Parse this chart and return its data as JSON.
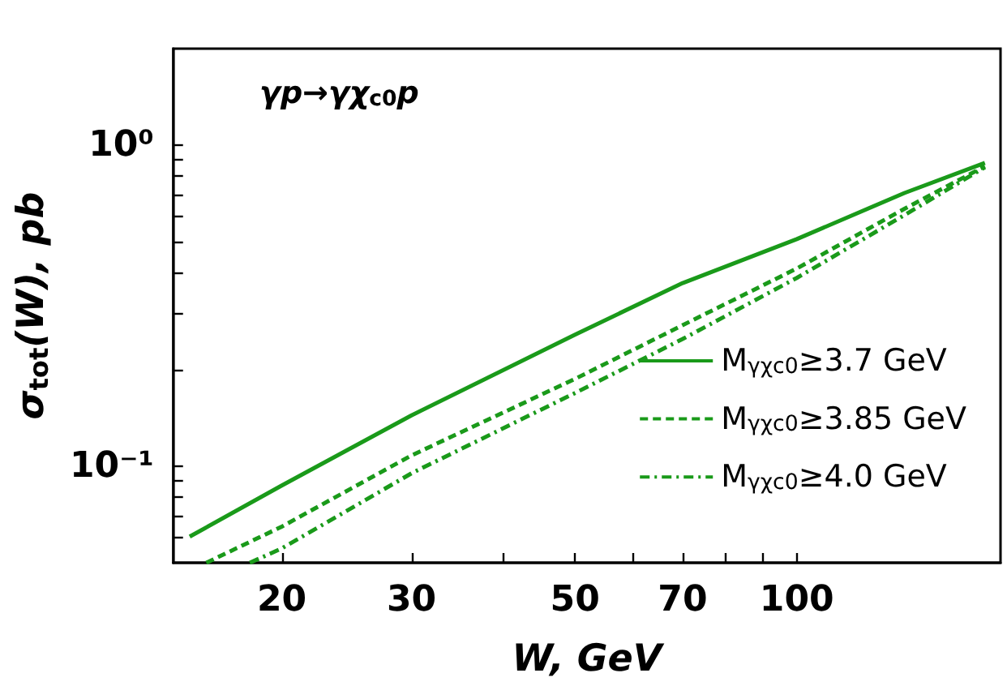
{
  "chart_data": {
    "type": "line",
    "xlabel": "W, GeV",
    "ylabel": "σ$_{tot}$(W), pb",
    "annotations": [
      "γp→γχ$_{c0}$p"
    ],
    "log": "xy",
    "xlim": [
      14.25,
      189
    ],
    "ylim": [
      0.05,
      2
    ],
    "xticks": [
      20,
      30,
      {
        "value": 40,
        "label": null
      },
      50,
      {
        "value": 60,
        "label": null
      },
      70,
      {
        "value": 80,
        "label": null
      },
      {
        "value": 90,
        "label": null
      },
      100
    ],
    "yticks": [
      {
        "value": 0.06,
        "label": null
      },
      {
        "value": 0.07,
        "label": null
      },
      {
        "value": 0.08,
        "label": null
      },
      {
        "value": 0.09,
        "label": null
      },
      {
        "value": 0.1,
        "label": "10⁻¹"
      },
      {
        "value": 0.2,
        "label": null
      },
      {
        "value": 0.3,
        "label": null
      },
      {
        "value": 0.4,
        "label": null
      },
      {
        "value": 0.5,
        "label": null
      },
      {
        "value": 0.6,
        "label": null
      },
      {
        "value": 0.7,
        "label": null
      },
      {
        "value": 0.8,
        "label": null
      },
      {
        "value": 0.9,
        "label": null
      },
      {
        "value": 1,
        "label": "10⁰"
      }
    ],
    "grid": false,
    "legend": "bottom right",
    "marker": "none",
    "series": [
      {
        "name": "M$_{γχc0}$≥3.7 GeV",
        "color": "#1a9a1a",
        "line_style": "solid",
        "x": [
          15,
          20,
          30,
          50,
          70,
          100,
          140,
          180
        ],
        "values": [
          0.0603,
          0.087,
          0.144,
          0.257,
          0.372,
          0.51,
          0.71,
          0.881
        ]
      },
      {
        "name": "M$_{γχc0}$≥3.85 GeV",
        "color": "#1a9a1a",
        "line_style": "dashed",
        "x": [
          15.8,
          20,
          30,
          50,
          70,
          100,
          140,
          180
        ],
        "values": [
          0.05,
          0.0648,
          0.108,
          0.187,
          0.275,
          0.413,
          0.634,
          0.86
        ]
      },
      {
        "name": "M$_{γχc0}$≥4.0 GeV",
        "color": "#1a9a1a",
        "line_style": "dashdot",
        "x": [
          18.1,
          20,
          30,
          50,
          70,
          100,
          140,
          180
        ],
        "values": [
          0.05,
          0.0554,
          0.095,
          0.169,
          0.249,
          0.386,
          0.606,
          0.854
        ]
      }
    ]
  }
}
